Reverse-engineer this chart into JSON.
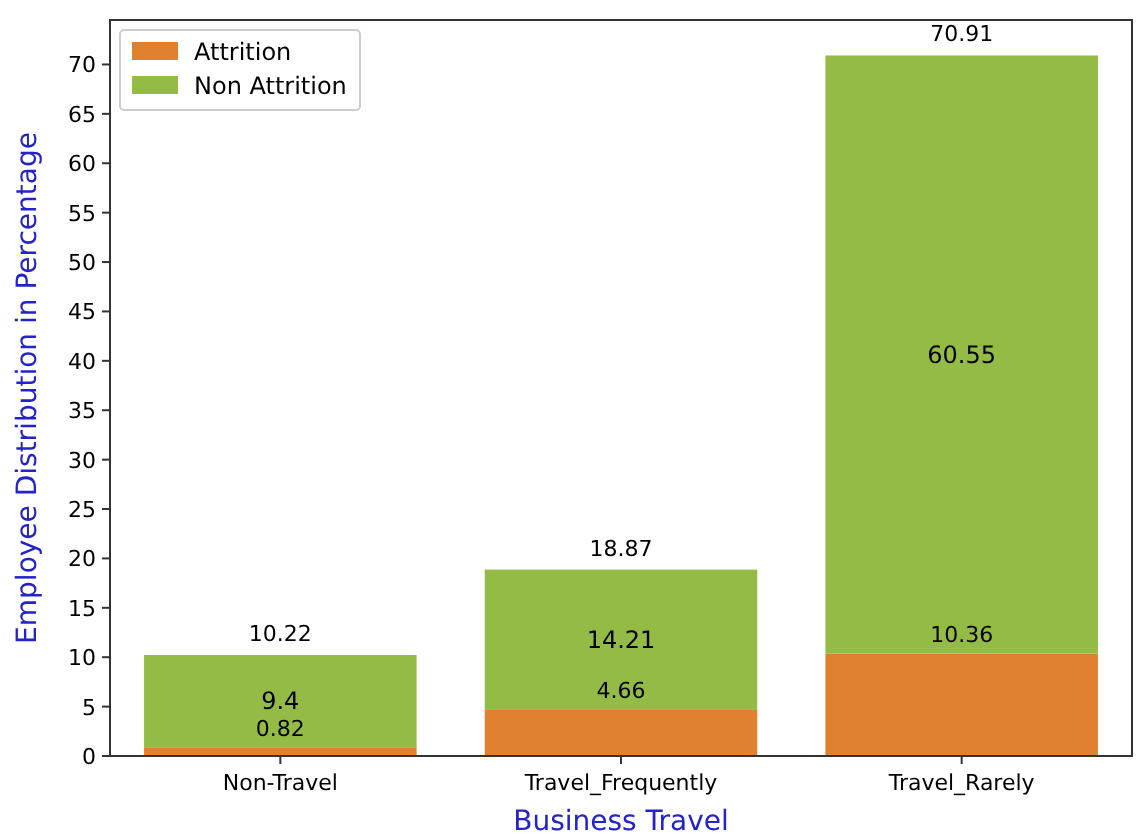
{
  "chart_data": {
    "type": "bar",
    "stacked": true,
    "xlabel": "Business Travel",
    "ylabel": "Employee Distribution in Percentage",
    "categories": [
      "Non-Travel",
      "Travel_Frequently",
      "Travel_Rarely"
    ],
    "series": [
      {
        "name": "Attrition",
        "color": "#e0812f",
        "values": [
          0.82,
          4.66,
          10.36
        ]
      },
      {
        "name": "Non Attrition",
        "color": "#93bb46",
        "values": [
          9.4,
          14.21,
          60.55
        ]
      }
    ],
    "totals": [
      "10.22",
      "18.87",
      "70.91"
    ],
    "data_labels": true,
    "ylim": [
      0,
      74.5
    ],
    "yticks": [
      0,
      5,
      10,
      15,
      20,
      25,
      30,
      35,
      40,
      45,
      50,
      55,
      60,
      65,
      70
    ],
    "legend": "top left"
  }
}
